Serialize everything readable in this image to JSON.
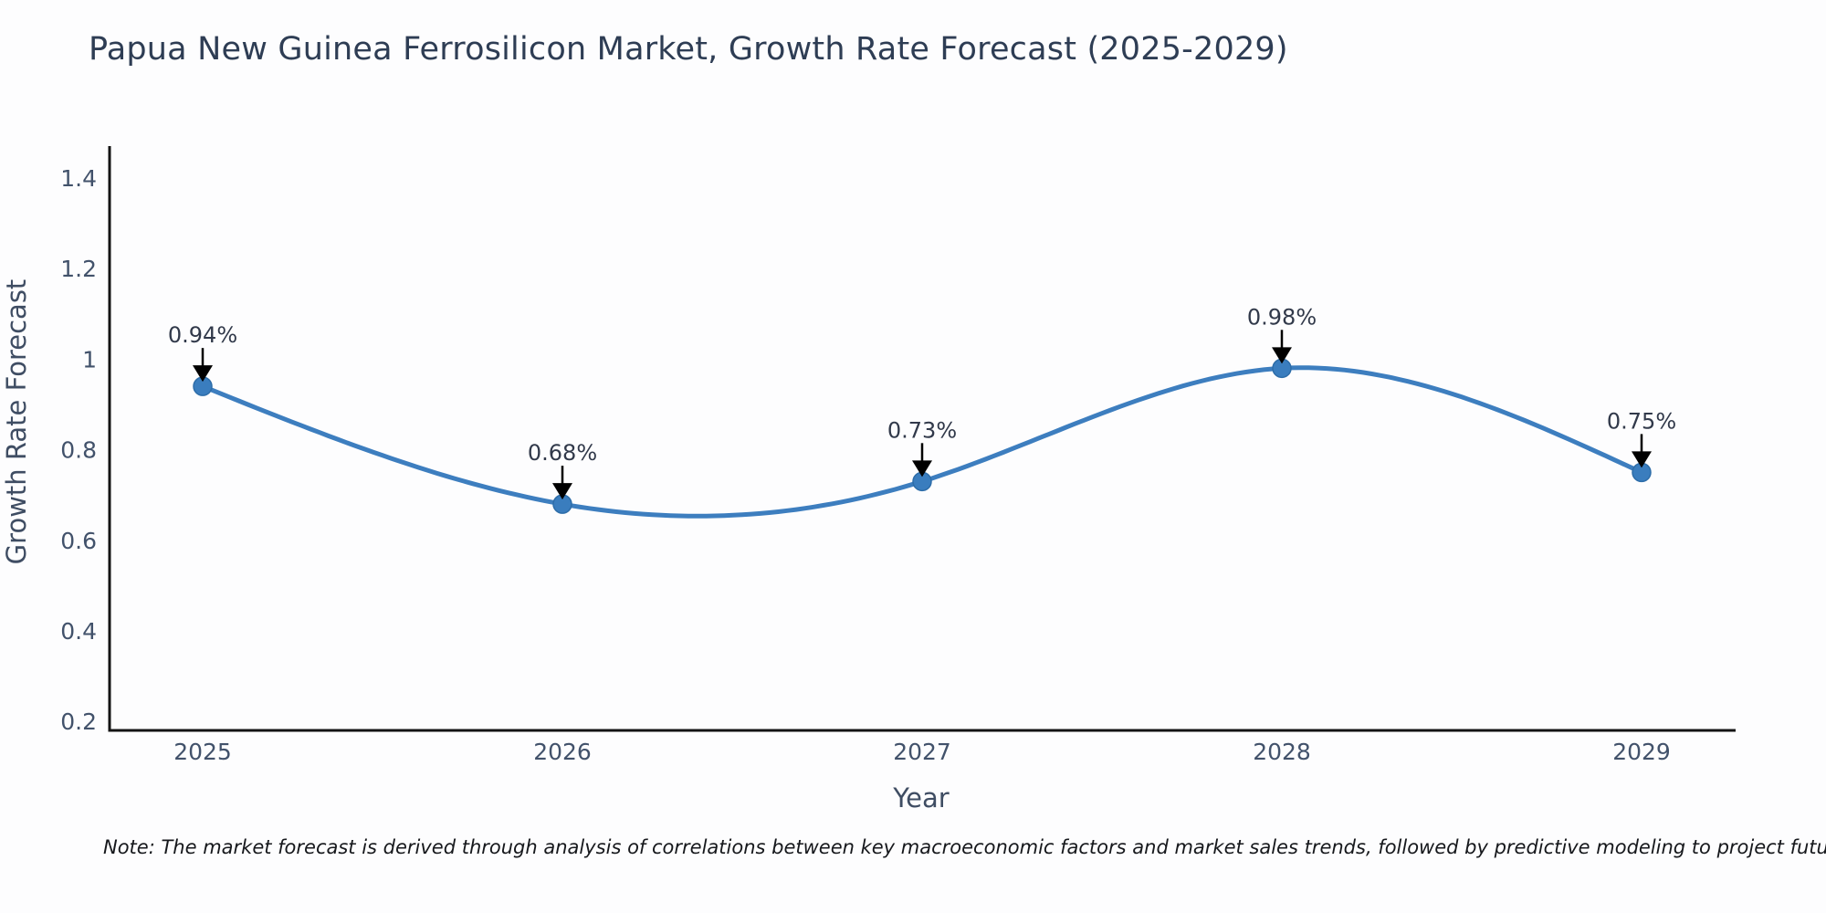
{
  "title": "Papua New Guinea Ferrosilicon Market, Growth Rate Forecast (2025-2029)",
  "note": "Note: The market forecast is derived through analysis of correlations between key macroeconomic factors and market sales trends, followed by predictive modeling to project future sales",
  "chart_data": {
    "type": "line",
    "title": "Papua New Guinea Ferrosilicon Market, Growth Rate Forecast (2025-2029)",
    "xlabel": "Year",
    "ylabel": "Growth Rate Forecast",
    "categories": [
      "2025",
      "2026",
      "2027",
      "2028",
      "2029"
    ],
    "values": [
      0.94,
      0.68,
      0.73,
      0.98,
      0.75
    ],
    "point_labels": [
      "0.94%",
      "0.68%",
      "0.73%",
      "0.98%",
      "0.75%"
    ],
    "y_ticks": [
      "1.4",
      "1.2",
      "1",
      "0.8",
      "0.6",
      "0.4",
      "0.2"
    ],
    "y_tick_values": [
      1.4,
      1.2,
      1.0,
      0.8,
      0.6,
      0.4,
      0.2
    ],
    "ylim": [
      0.19,
      1.47
    ],
    "grid": false,
    "smooth": true,
    "legend": "none",
    "line_color": "#3d7ebf",
    "marker_color": "#3a7dbe",
    "annotation_arrow_color": "#000000",
    "spine_color": "#141414",
    "text_color": "#2e3d54"
  }
}
